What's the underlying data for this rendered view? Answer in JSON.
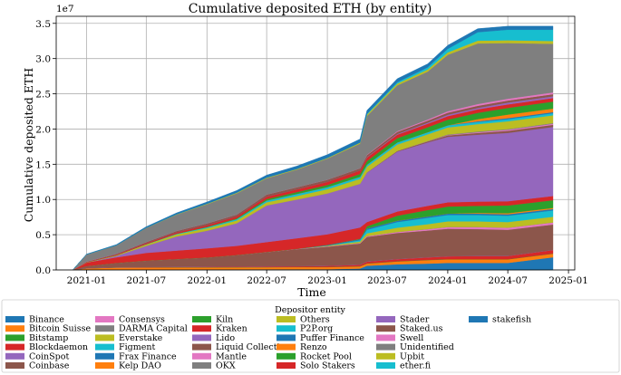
{
  "chart_data": {
    "type": "area",
    "stacked": true,
    "title": "Cumulative deposited ETH (by entity)",
    "xlabel": "Time",
    "ylabel": "Cumulative deposited ETH",
    "y_scale_label": "1e7",
    "ylim": [
      0,
      36000000
    ],
    "x_range": [
      "2020-10-01",
      "2025-01-20"
    ],
    "x_ticks": [
      "2021-01",
      "2021-07",
      "2022-01",
      "2022-07",
      "2023-01",
      "2023-07",
      "2024-01",
      "2024-07",
      "2025-01"
    ],
    "x_tick_dates": [
      "2021-01-01",
      "2021-07-01",
      "2022-01-01",
      "2022-07-01",
      "2023-01-01",
      "2023-07-01",
      "2024-01-01",
      "2024-07-01",
      "2025-01-01"
    ],
    "y_ticks": [
      "0.0",
      "0.5",
      "1.0",
      "1.5",
      "2.0",
      "2.5",
      "3.0",
      "3.5"
    ],
    "y_tick_values": [
      0,
      5000000,
      10000000,
      15000000,
      20000000,
      25000000,
      30000000,
      35000000
    ],
    "grid": true,
    "legend": {
      "title": "Depositor entity",
      "placement": "bottom",
      "columns": 6
    },
    "x": [
      "2020-11-20",
      "2021-01-01",
      "2021-04-01",
      "2021-07-01",
      "2021-10-01",
      "2022-01-01",
      "2022-04-01",
      "2022-07-01",
      "2022-10-01",
      "2023-01-01",
      "2023-04-10",
      "2023-05-01",
      "2023-08-01",
      "2023-11-01",
      "2024-01-01",
      "2024-04-01",
      "2024-07-01",
      "2024-11-15"
    ],
    "series": [
      {
        "name": "Binance",
        "color": "#1f77b4",
        "values": [
          0,
          20000,
          30000,
          40000,
          50000,
          60000,
          70000,
          80000,
          100000,
          100000,
          200000,
          600000,
          800000,
          900000,
          1000000,
          1000000,
          1000000,
          1800000
        ]
      },
      {
        "name": "Bitcoin Suisse",
        "color": "#ff7f0e",
        "values": [
          0,
          200000,
          300000,
          300000,
          300000,
          300000,
          300000,
          300000,
          300000,
          300000,
          300000,
          300000,
          400000,
          500000,
          500000,
          500000,
          500000,
          500000
        ]
      },
      {
        "name": "Bitstamp",
        "color": "#2ca02c",
        "values": [
          0,
          10000,
          20000,
          30000,
          30000,
          30000,
          30000,
          30000,
          30000,
          30000,
          30000,
          30000,
          30000,
          30000,
          30000,
          30000,
          30000,
          30000
        ]
      },
      {
        "name": "Blockdaemon",
        "color": "#d62728",
        "values": [
          0,
          10000,
          20000,
          30000,
          50000,
          60000,
          80000,
          100000,
          100000,
          150000,
          200000,
          250000,
          300000,
          350000,
          400000,
          450000,
          450000,
          500000
        ]
      },
      {
        "name": "CoinSpot",
        "color": "#9467bd",
        "values": [
          0,
          10000,
          20000,
          20000,
          20000,
          20000,
          20000,
          20000,
          20000,
          20000,
          20000,
          20000,
          20000,
          20000,
          20000,
          20000,
          20000,
          20000
        ]
      },
      {
        "name": "Coinbase",
        "color": "#8c564b",
        "values": [
          0,
          300000,
          600000,
          900000,
          1100000,
          1300000,
          1600000,
          2000000,
          2400000,
          2700000,
          3000000,
          3500000,
          3700000,
          3800000,
          3900000,
          3800000,
          3700000,
          3600000
        ]
      },
      {
        "name": "Consensys",
        "color": "#e377c2",
        "values": [
          0,
          0,
          0,
          0,
          0,
          0,
          20000,
          30000,
          50000,
          60000,
          80000,
          100000,
          150000,
          200000,
          250000,
          300000,
          300000,
          300000
        ]
      },
      {
        "name": "DARMA Capital",
        "color": "#7f7f7f",
        "values": [
          0,
          0,
          0,
          0,
          0,
          0,
          0,
          0,
          0,
          0,
          0,
          0,
          0,
          0,
          0,
          0,
          0,
          0
        ]
      },
      {
        "name": "Everstake",
        "color": "#bcbd22",
        "values": [
          0,
          0,
          0,
          0,
          0,
          0,
          0,
          0,
          0,
          100000,
          200000,
          400000,
          600000,
          700000,
          800000,
          800000,
          800000,
          800000
        ]
      },
      {
        "name": "Figment",
        "color": "#17becf",
        "values": [
          0,
          0,
          0,
          0,
          0,
          0,
          0,
          0,
          0,
          0,
          200000,
          500000,
          800000,
          900000,
          900000,
          900000,
          900000,
          900000
        ]
      },
      {
        "name": "Frax Finance",
        "color": "#1f77b4",
        "values": [
          0,
          0,
          0,
          0,
          0,
          0,
          0,
          0,
          0,
          100000,
          150000,
          200000,
          200000,
          200000,
          200000,
          200000,
          200000,
          200000
        ]
      },
      {
        "name": "Kelp DAO",
        "color": "#ff7f0e",
        "values": [
          0,
          0,
          0,
          0,
          0,
          0,
          0,
          0,
          0,
          0,
          0,
          0,
          0,
          0,
          0,
          100000,
          150000,
          150000
        ]
      },
      {
        "name": "Kiln",
        "color": "#2ca02c",
        "values": [
          0,
          0,
          0,
          0,
          0,
          0,
          0,
          0,
          0,
          0,
          50000,
          300000,
          700000,
          900000,
          1000000,
          1000000,
          1100000,
          1100000
        ]
      },
      {
        "name": "Kraken",
        "color": "#d62728",
        "values": [
          0,
          500000,
          800000,
          1100000,
          1200000,
          1300000,
          1300000,
          1400000,
          1500000,
          1500000,
          1600000,
          600000,
          600000,
          600000,
          600000,
          600000,
          600000,
          600000
        ]
      },
      {
        "name": "Lido",
        "color": "#9467bd",
        "values": [
          0,
          0,
          200000,
          1000000,
          2000000,
          2500000,
          3200000,
          5200000,
          5500000,
          5800000,
          6200000,
          7000000,
          8500000,
          9000000,
          9300000,
          9500000,
          9700000,
          9800000
        ]
      },
      {
        "name": "Liquid Collective",
        "color": "#8c564b",
        "values": [
          0,
          0,
          0,
          0,
          0,
          0,
          0,
          0,
          0,
          0,
          0,
          50000,
          100000,
          150000,
          200000,
          250000,
          300000,
          300000
        ]
      },
      {
        "name": "Mantle",
        "color": "#e377c2",
        "values": [
          0,
          0,
          0,
          0,
          0,
          0,
          0,
          0,
          0,
          0,
          0,
          0,
          0,
          0,
          50000,
          100000,
          150000,
          150000
        ]
      },
      {
        "name": "OKX",
        "color": "#7f7f7f",
        "values": [
          0,
          0,
          0,
          0,
          0,
          0,
          0,
          0,
          0,
          0,
          0,
          0,
          0,
          50000,
          80000,
          100000,
          100000,
          100000
        ]
      },
      {
        "name": "Others",
        "color": "#bcbd22",
        "values": [
          0,
          50000,
          100000,
          200000,
          300000,
          350000,
          400000,
          450000,
          500000,
          600000,
          700000,
          800000,
          900000,
          950000,
          1000000,
          1050000,
          1100000,
          1100000
        ]
      },
      {
        "name": "P2P.org",
        "color": "#17becf",
        "values": [
          0,
          0,
          0,
          50000,
          100000,
          150000,
          200000,
          250000,
          300000,
          300000,
          300000,
          300000,
          300000,
          300000,
          300000,
          300000,
          300000,
          300000
        ]
      },
      {
        "name": "Puffer Finance",
        "color": "#1f77b4",
        "values": [
          0,
          0,
          0,
          0,
          0,
          0,
          0,
          0,
          0,
          0,
          0,
          0,
          0,
          0,
          0,
          100000,
          150000,
          150000
        ]
      },
      {
        "name": "Renzo",
        "color": "#ff7f0e",
        "values": [
          0,
          0,
          0,
          0,
          0,
          0,
          0,
          0,
          0,
          0,
          0,
          0,
          0,
          0,
          0,
          300000,
          500000,
          500000
        ]
      },
      {
        "name": "Rocket Pool",
        "color": "#2ca02c",
        "values": [
          0,
          0,
          0,
          0,
          0,
          50000,
          100000,
          200000,
          250000,
          300000,
          400000,
          500000,
          600000,
          700000,
          800000,
          900000,
          950000,
          1000000
        ]
      },
      {
        "name": "Solo Stakers",
        "color": "#d62728",
        "values": [
          0,
          50000,
          100000,
          150000,
          200000,
          250000,
          300000,
          350000,
          400000,
          450000,
          500000,
          500000,
          500000,
          500000,
          500000,
          500000,
          500000,
          500000
        ]
      },
      {
        "name": "Stader",
        "color": "#9467bd",
        "values": [
          0,
          0,
          0,
          0,
          0,
          0,
          0,
          0,
          0,
          0,
          0,
          50000,
          100000,
          150000,
          200000,
          200000,
          250000,
          250000
        ]
      },
      {
        "name": "Staked.us",
        "color": "#8c564b",
        "values": [
          0,
          50000,
          100000,
          150000,
          200000,
          250000,
          250000,
          300000,
          300000,
          300000,
          300000,
          300000,
          300000,
          300000,
          300000,
          300000,
          300000,
          300000
        ]
      },
      {
        "name": "Swell",
        "color": "#e377c2",
        "values": [
          0,
          0,
          0,
          0,
          0,
          0,
          0,
          0,
          0,
          0,
          0,
          50000,
          100000,
          150000,
          200000,
          250000,
          250000,
          250000
        ]
      },
      {
        "name": "Unidentified",
        "color": "#7f7f7f",
        "values": [
          0,
          1000000,
          1200000,
          2000000,
          2300000,
          2700000,
          3000000,
          2300000,
          2500000,
          3000000,
          3500000,
          5500000,
          6500000,
          6800000,
          8000000,
          8600000,
          7900000,
          6900000
        ]
      },
      {
        "name": "Upbit",
        "color": "#bcbd22",
        "values": [
          0,
          0,
          0,
          20000,
          50000,
          80000,
          100000,
          100000,
          100000,
          100000,
          150000,
          200000,
          250000,
          300000,
          350000,
          400000,
          400000,
          400000
        ]
      },
      {
        "name": "ether.fi",
        "color": "#17becf",
        "values": [
          0,
          0,
          0,
          0,
          0,
          0,
          0,
          0,
          0,
          0,
          0,
          100000,
          200000,
          300000,
          500000,
          1200000,
          1500000,
          1600000
        ]
      },
      {
        "name": "stakefish",
        "color": "#1f77b4",
        "values": [
          0,
          50000,
          100000,
          150000,
          200000,
          250000,
          300000,
          350000,
          400000,
          450000,
          500000,
          500000,
          500000,
          500000,
          500000,
          500000,
          500000,
          500000
        ]
      }
    ]
  }
}
